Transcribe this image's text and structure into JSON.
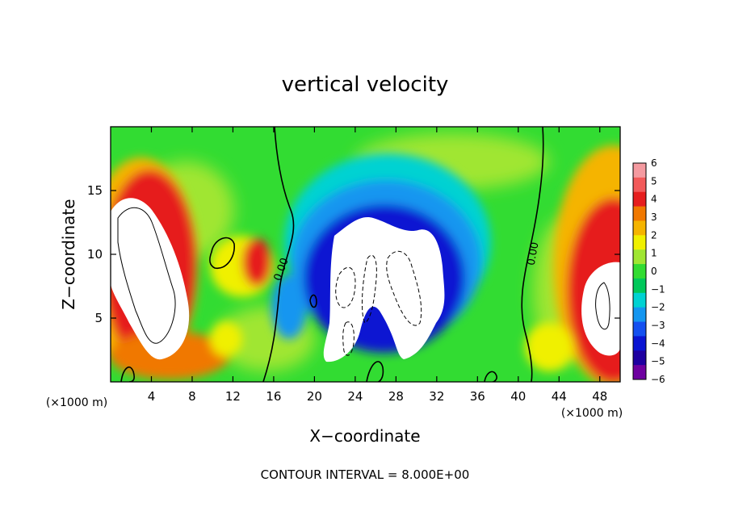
{
  "chart_data": {
    "type": "heatmap",
    "title": "vertical velocity",
    "xlabel": "X−coordinate",
    "ylabel": "Z−coordinate",
    "x_unit_left": "(×1000 m)",
    "x_unit_right": "(×1000 m)",
    "footer": "CONTOUR INTERVAL = 8.000E+00",
    "xlim": [
      0,
      50
    ],
    "ylim": [
      0,
      20
    ],
    "x_ticks": [
      4,
      8,
      12,
      16,
      20,
      24,
      28,
      32,
      36,
      40,
      44,
      48
    ],
    "x_tick_labels": [
      "4",
      "8",
      "12",
      "16",
      "20",
      "24",
      "28",
      "32",
      "36",
      "40",
      "44",
      "48"
    ],
    "y_ticks": [
      5,
      10,
      15
    ],
    "y_tick_labels": [
      "5",
      "10",
      "15"
    ],
    "colorbar": {
      "levels": [
        6,
        5,
        4,
        3,
        2,
        1,
        0,
        -1,
        -2,
        -3,
        -4,
        -5,
        -6
      ],
      "labels": [
        "6",
        "5",
        "4",
        "3",
        "2",
        "1",
        "0",
        "−1",
        "−2",
        "−3",
        "−4",
        "−5",
        "−6"
      ],
      "colors": [
        "#f49aa0",
        "#f25a5a",
        "#e61e1e",
        "#f07800",
        "#f5b400",
        "#f0f000",
        "#a0e632",
        "#32dc32",
        "#00c85a",
        "#00d2d2",
        "#1496f0",
        "#1450f0",
        "#0a14d2",
        "#1e00a0",
        "#6e00a0"
      ]
    },
    "contour_labels": [
      {
        "x": 17.5,
        "y": 9.0,
        "text": "0.00"
      },
      {
        "x": 42.0,
        "y": 9.5,
        "text": "0.00"
      }
    ],
    "features": [
      {
        "kind": "updraft",
        "x": 3.5,
        "z": 9,
        "value": 8
      },
      {
        "kind": "updraft",
        "x": 48,
        "z": 5,
        "value": 8
      },
      {
        "kind": "downdraft",
        "x": 28,
        "z": 7,
        "value": -8
      }
    ]
  }
}
